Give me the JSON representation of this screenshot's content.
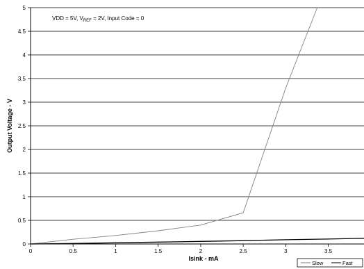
{
  "chart_data": {
    "type": "line",
    "annotation": {
      "before": "VDD = 5V, V",
      "sub": "REF",
      "after": " = 2V, Input Code = 0"
    },
    "xlabel": "Isink - mA",
    "ylabel": "Output Voltage - V",
    "xlim": [
      0,
      3.92
    ],
    "ylim": [
      0,
      5
    ],
    "xticks": [
      0,
      0.5,
      1,
      1.5,
      2,
      2.5,
      3,
      3.5
    ],
    "xtick_labels": [
      "0",
      "0.5",
      "1",
      "1.5",
      "2",
      "2.5",
      "3",
      "3.5"
    ],
    "yticks": [
      0,
      0.5,
      1,
      1.5,
      2,
      2.5,
      3,
      3.5,
      4,
      4.5,
      5
    ],
    "ytick_labels": [
      "0",
      "0.5",
      "1",
      "1.5",
      "2",
      "2.5",
      "3",
      "3.5",
      "4",
      "4.5",
      "5"
    ],
    "grid": "horizontal",
    "legend_position": "bottom-right",
    "series": [
      {
        "name": "Slow",
        "color": "#808080",
        "x": [
          0,
          0.5,
          1,
          1.5,
          2,
          2.5,
          3,
          3.37
        ],
        "y": [
          0,
          0.1,
          0.18,
          0.28,
          0.4,
          0.66,
          3.3,
          5
        ]
      },
      {
        "name": "Fast",
        "color": "#000000",
        "x": [
          0,
          0.5,
          1,
          1.5,
          2,
          2.5,
          3,
          3.5,
          3.92
        ],
        "y": [
          0,
          0.01,
          0.025,
          0.04,
          0.055,
          0.07,
          0.09,
          0.105,
          0.12
        ]
      }
    ]
  }
}
